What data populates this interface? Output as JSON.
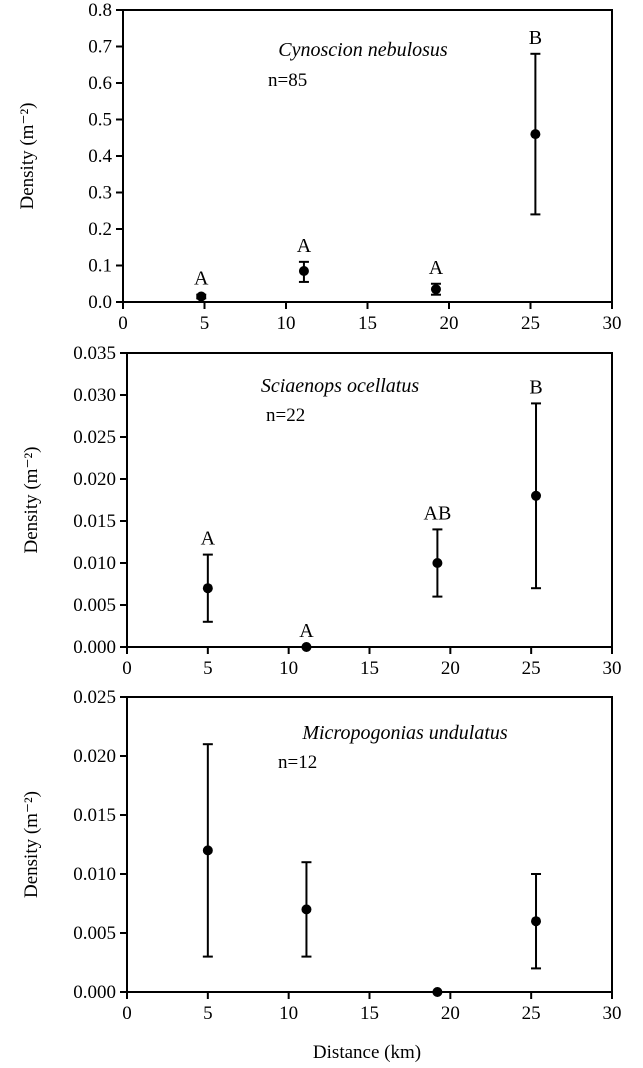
{
  "x_axis_label": "Distance (km)",
  "chart_data": [
    {
      "type": "scatter",
      "title": "Cynoscion nebulosus",
      "n_label": "n=85",
      "ylabel": "Density (m⁻²)",
      "xlim": [
        0,
        30
      ],
      "ylim": [
        0,
        0.8
      ],
      "x_ticks": [
        "0",
        "5",
        "10",
        "15",
        "20",
        "25",
        "30"
      ],
      "y_ticks": [
        "0.0",
        "0.1",
        "0.2",
        "0.3",
        "0.4",
        "0.5",
        "0.6",
        "0.7",
        "0.8"
      ],
      "points": [
        {
          "x": 4.8,
          "y": 0.015,
          "lo": 0.01,
          "hi": 0.02,
          "label": "A"
        },
        {
          "x": 11.1,
          "y": 0.085,
          "lo": 0.055,
          "hi": 0.11,
          "label": "A"
        },
        {
          "x": 19.2,
          "y": 0.035,
          "lo": 0.02,
          "hi": 0.05,
          "label": "A"
        },
        {
          "x": 25.3,
          "y": 0.46,
          "lo": 0.24,
          "hi": 0.68,
          "label": "B"
        }
      ]
    },
    {
      "type": "scatter",
      "title": "Sciaenops ocellatus",
      "n_label": "n=22",
      "ylabel": "Density (m⁻²)",
      "xlim": [
        0,
        30
      ],
      "ylim": [
        0,
        0.035
      ],
      "x_ticks": [
        "0",
        "5",
        "10",
        "15",
        "20",
        "25",
        "30"
      ],
      "y_ticks": [
        "0.000",
        "0.005",
        "0.010",
        "0.015",
        "0.020",
        "0.025",
        "0.030",
        "0.035"
      ],
      "points": [
        {
          "x": 5.0,
          "y": 0.007,
          "lo": 0.003,
          "hi": 0.011,
          "label": "A"
        },
        {
          "x": 11.1,
          "y": 0.0,
          "lo": 0.0,
          "hi": 0.0,
          "label": "A"
        },
        {
          "x": 19.2,
          "y": 0.01,
          "lo": 0.006,
          "hi": 0.014,
          "label": "AB"
        },
        {
          "x": 25.3,
          "y": 0.018,
          "lo": 0.007,
          "hi": 0.029,
          "label": "B"
        }
      ]
    },
    {
      "type": "scatter",
      "title": "Micropogonias undulatus",
      "n_label": "n=12",
      "ylabel": "Density (m⁻²)",
      "xlim": [
        0,
        30
      ],
      "ylim": [
        0,
        0.025
      ],
      "x_ticks": [
        "0",
        "5",
        "10",
        "15",
        "20",
        "25",
        "30"
      ],
      "y_ticks": [
        "0.000",
        "0.005",
        "0.010",
        "0.015",
        "0.020",
        "0.025"
      ],
      "points": [
        {
          "x": 5.0,
          "y": 0.012,
          "lo": 0.003,
          "hi": 0.021,
          "label": ""
        },
        {
          "x": 11.1,
          "y": 0.007,
          "lo": 0.003,
          "hi": 0.011,
          "label": ""
        },
        {
          "x": 19.2,
          "y": 0.0,
          "lo": 0.0,
          "hi": 0.0,
          "label": ""
        },
        {
          "x": 25.3,
          "y": 0.006,
          "lo": 0.002,
          "hi": 0.01,
          "label": ""
        }
      ]
    }
  ]
}
